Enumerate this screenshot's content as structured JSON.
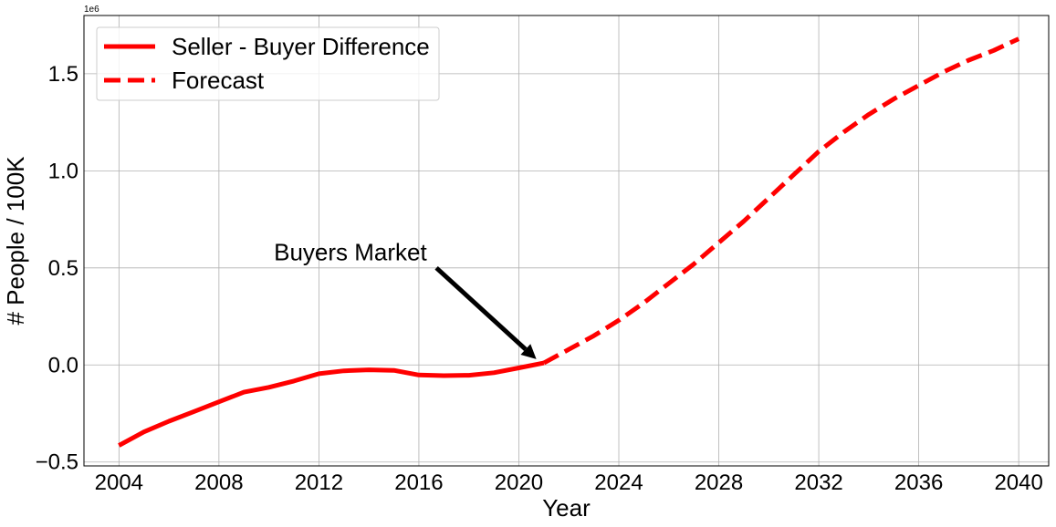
{
  "chart_data": {
    "type": "line",
    "xlabel": "Year",
    "ylabel": "# People / 100K",
    "y_offset_label": "1e6",
    "x_ticks": [
      2004,
      2008,
      2012,
      2016,
      2020,
      2024,
      2028,
      2032,
      2036,
      2040
    ],
    "y_ticks": [
      -0.5,
      0.0,
      0.5,
      1.0,
      1.5
    ],
    "y_tick_labels": [
      "−0.5",
      "0.0",
      "0.5",
      "1.0",
      "1.5"
    ],
    "xlim": [
      2002.6,
      2041.2
    ],
    "ylim": [
      -0.52,
      1.8
    ],
    "grid": true,
    "legend_position": "top-left",
    "series": [
      {
        "name": "Seller - Buyer Difference",
        "style": "solid",
        "color": "#ff0000",
        "x": [
          2004,
          2005,
          2006,
          2007,
          2008,
          2009,
          2010,
          2011,
          2012,
          2013,
          2014,
          2015,
          2016,
          2017,
          2018,
          2019,
          2020,
          2021
        ],
        "y": [
          -0.415,
          -0.345,
          -0.29,
          -0.24,
          -0.19,
          -0.14,
          -0.115,
          -0.083,
          -0.045,
          -0.03,
          -0.025,
          -0.028,
          -0.052,
          -0.055,
          -0.053,
          -0.04,
          -0.015,
          0.01
        ]
      },
      {
        "name": "Forecast",
        "style": "dashed",
        "color": "#ff0000",
        "x": [
          2021,
          2022,
          2023,
          2024,
          2025,
          2026,
          2027,
          2028,
          2029,
          2030,
          2031,
          2032,
          2033,
          2034,
          2035,
          2036,
          2037,
          2038,
          2039,
          2040
        ],
        "y": [
          0.01,
          0.08,
          0.15,
          0.23,
          0.32,
          0.42,
          0.52,
          0.63,
          0.74,
          0.86,
          0.98,
          1.1,
          1.2,
          1.29,
          1.37,
          1.44,
          1.51,
          1.57,
          1.62,
          1.68
        ]
      }
    ],
    "annotation": {
      "text": "Buyers Market",
      "text_x": 2010.2,
      "text_y": 0.54,
      "arrow_from_x": 2016.7,
      "arrow_from_y": 0.5,
      "arrow_to_x": 2020.7,
      "arrow_to_y": 0.03
    }
  }
}
